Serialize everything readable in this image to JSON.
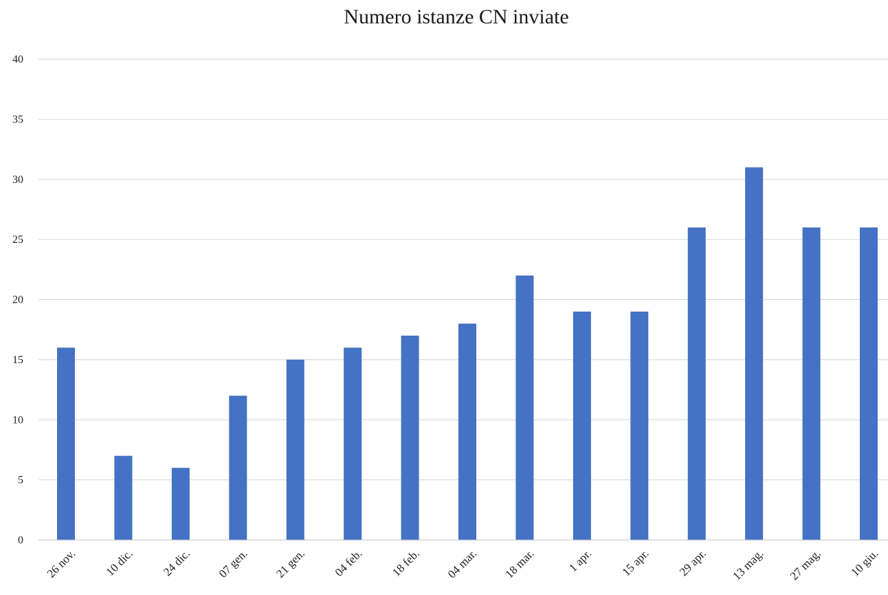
{
  "chart_data": {
    "type": "bar",
    "title": "Numero istanze CN inviate",
    "xlabel": "",
    "ylabel": "",
    "categories": [
      "26 nov.",
      "10 dic.",
      "24 dic.",
      "07 gen.",
      "21 gen.",
      "04 feb.",
      "18 feb.",
      "04 mar.",
      "18 mar.",
      "1 apr.",
      "15 apr.",
      "29 apr.",
      "13 mag.",
      "27 mag.",
      "10 giu."
    ],
    "values": [
      16,
      7,
      6,
      12,
      15,
      16,
      17,
      18,
      22,
      19,
      19,
      26,
      31,
      26,
      26
    ],
    "ylim": [
      0,
      40
    ],
    "yticks": [
      0,
      5,
      10,
      15,
      20,
      25,
      30,
      35,
      40
    ],
    "grid": true,
    "bar_color": "#4472c4"
  }
}
